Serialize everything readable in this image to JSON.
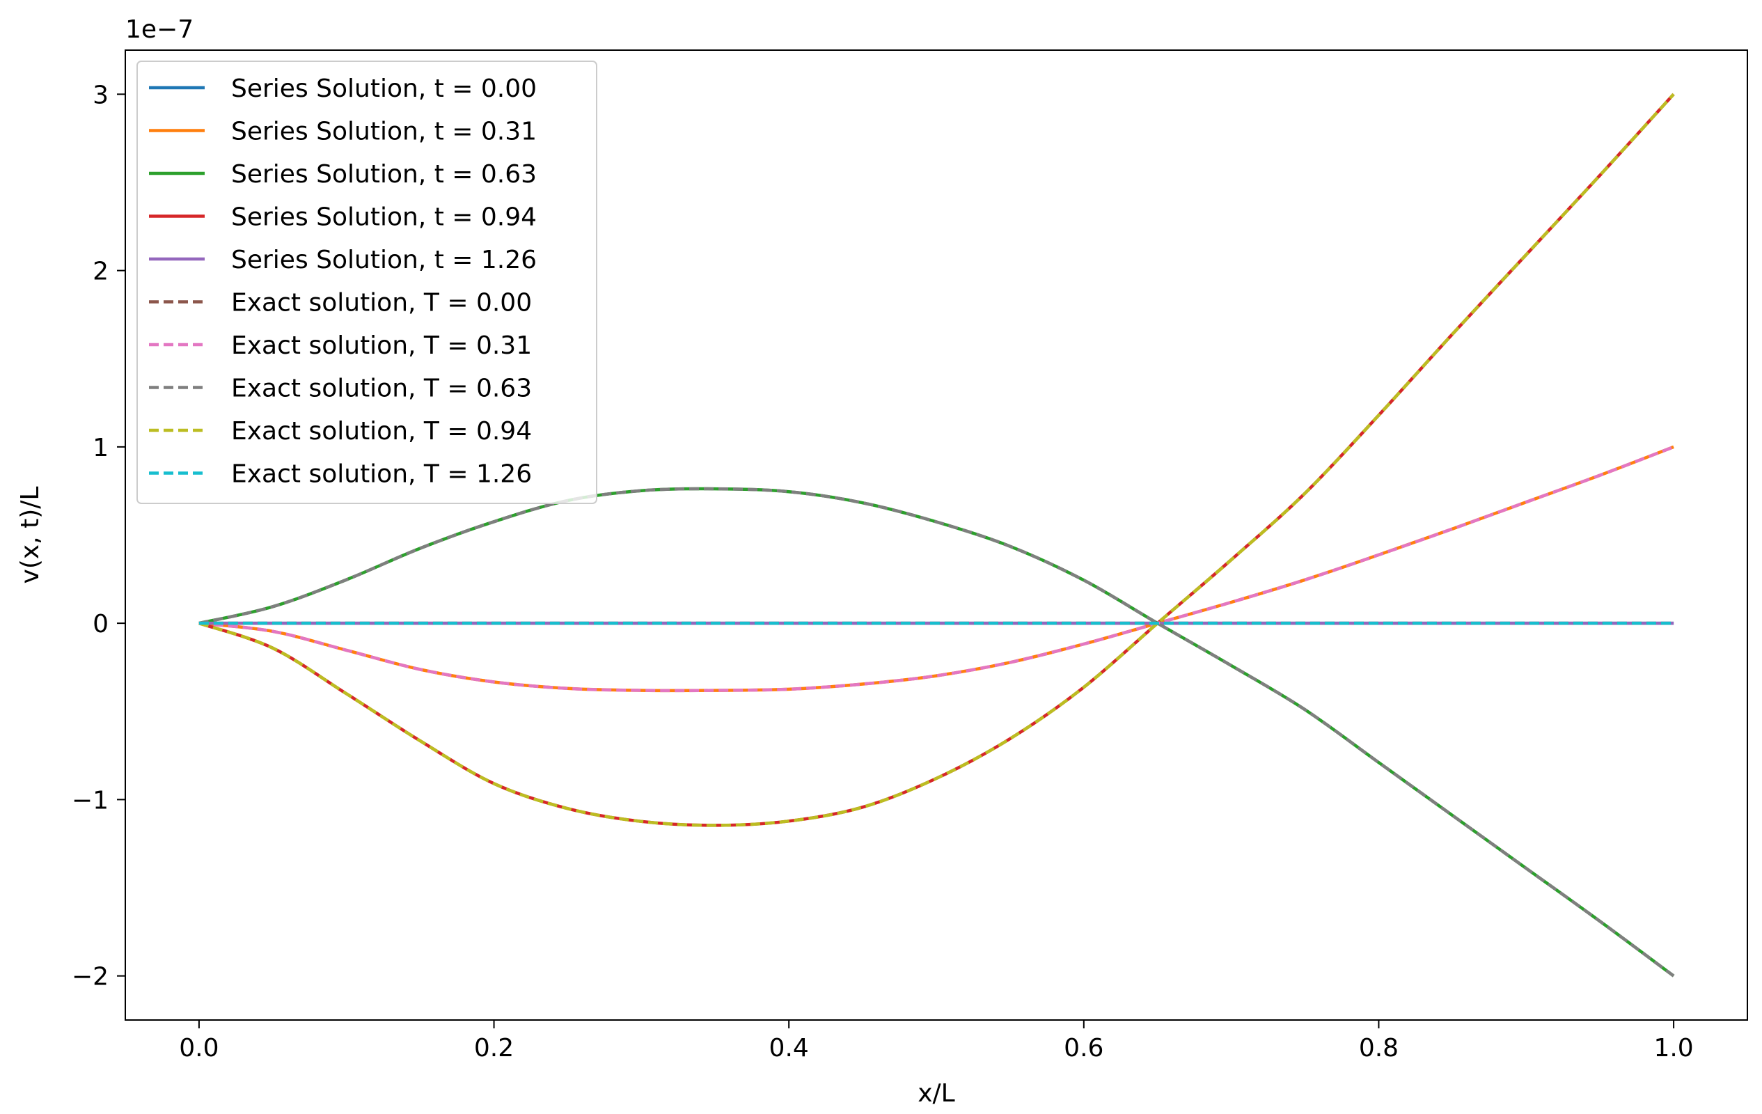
{
  "chart_data": {
    "type": "line",
    "title": "",
    "xlabel": "x/L",
    "ylabel": "v(x, t)/L",
    "y_offset_label": "1e−7",
    "y_scale": 1e-07,
    "xlim": [
      -0.05,
      1.05
    ],
    "ylim": [
      -2.25,
      3.25
    ],
    "x_ticks": [
      0.0,
      0.2,
      0.4,
      0.6,
      0.8,
      1.0
    ],
    "x_tick_labels": [
      "0.0",
      "0.2",
      "0.4",
      "0.6",
      "0.8",
      "1.0"
    ],
    "y_ticks": [
      -2,
      -1,
      0,
      1,
      2,
      3
    ],
    "y_tick_labels": [
      "−2",
      "−1",
      "0",
      "1",
      "2",
      "3"
    ],
    "grid": false,
    "legend_position": "upper-left",
    "x": [
      0.0,
      0.05,
      0.1,
      0.15,
      0.2,
      0.25,
      0.3,
      0.35,
      0.4,
      0.45,
      0.5,
      0.55,
      0.6,
      0.65,
      0.7,
      0.75,
      0.8,
      0.85,
      0.9,
      0.95,
      1.0
    ],
    "series": [
      {
        "name": "Series Solution, t = 0.00",
        "style": "solid",
        "color": "#1f77b4",
        "values": [
          0,
          0,
          0,
          0,
          0,
          0,
          0,
          0,
          0,
          0,
          0,
          0,
          0,
          0,
          0,
          0,
          0,
          0,
          0,
          0,
          0
        ]
      },
      {
        "name": "Series Solution, t = 0.31",
        "style": "solid",
        "color": "#ff7f0e",
        "values": [
          0,
          -0.046,
          -0.153,
          -0.262,
          -0.333,
          -0.37,
          -0.381,
          -0.381,
          -0.374,
          -0.345,
          -0.298,
          -0.222,
          -0.118,
          0,
          0.119,
          0.246,
          0.388,
          0.535,
          0.687,
          0.839,
          1.0
        ]
      },
      {
        "name": "Series Solution, t = 0.63",
        "style": "solid",
        "color": "#2ca02c",
        "values": [
          0,
          0.094,
          0.247,
          0.425,
          0.576,
          0.696,
          0.752,
          0.762,
          0.746,
          0.683,
          0.575,
          0.436,
          0.244,
          0,
          -0.24,
          -0.49,
          -0.79,
          -1.09,
          -1.39,
          -1.69,
          -2.0
        ]
      },
      {
        "name": "Series Solution, t = 0.94",
        "style": "solid",
        "color": "#d62728",
        "values": [
          0,
          -0.141,
          -0.4,
          -0.667,
          -0.909,
          -1.051,
          -1.124,
          -1.146,
          -1.122,
          -1.043,
          -0.88,
          -0.655,
          -0.363,
          0,
          0.36,
          0.737,
          1.18,
          1.64,
          2.09,
          2.54,
          3.0
        ]
      },
      {
        "name": "Series Solution, t = 1.26",
        "style": "solid",
        "color": "#9467bd",
        "values": [
          0,
          0,
          0,
          0,
          0,
          0,
          0,
          0,
          0,
          0,
          0,
          0,
          0,
          0,
          0,
          0,
          0,
          0,
          0,
          0,
          0
        ]
      },
      {
        "name": "Exact solution, T = 0.00",
        "style": "dashed",
        "color": "#8c564b",
        "values": [
          0,
          0,
          0,
          0,
          0,
          0,
          0,
          0,
          0,
          0,
          0,
          0,
          0,
          0,
          0,
          0,
          0,
          0,
          0,
          0,
          0
        ]
      },
      {
        "name": "Exact solution, T = 0.31",
        "style": "dashed",
        "color": "#e377c2",
        "values": [
          0,
          -0.046,
          -0.153,
          -0.262,
          -0.333,
          -0.37,
          -0.381,
          -0.381,
          -0.374,
          -0.345,
          -0.298,
          -0.222,
          -0.118,
          0,
          0.119,
          0.246,
          0.388,
          0.535,
          0.687,
          0.839,
          1.0
        ]
      },
      {
        "name": "Exact solution, T = 0.63",
        "style": "dashed",
        "color": "#7f7f7f",
        "values": [
          0,
          0.094,
          0.247,
          0.425,
          0.576,
          0.696,
          0.752,
          0.762,
          0.746,
          0.683,
          0.575,
          0.436,
          0.244,
          0,
          -0.24,
          -0.49,
          -0.79,
          -1.09,
          -1.39,
          -1.69,
          -2.0
        ]
      },
      {
        "name": "Exact solution, T = 0.94",
        "style": "dashed",
        "color": "#bcbd22",
        "values": [
          0,
          -0.141,
          -0.4,
          -0.667,
          -0.909,
          -1.051,
          -1.124,
          -1.146,
          -1.122,
          -1.043,
          -0.88,
          -0.655,
          -0.363,
          0,
          0.36,
          0.737,
          1.18,
          1.64,
          2.09,
          2.54,
          3.0
        ]
      },
      {
        "name": "Exact solution, T = 1.26",
        "style": "dashed",
        "color": "#17becf",
        "values": [
          0,
          0,
          0,
          0,
          0,
          0,
          0,
          0,
          0,
          0,
          0,
          0,
          0,
          0,
          0,
          0,
          0,
          0,
          0,
          0,
          0
        ]
      }
    ]
  }
}
